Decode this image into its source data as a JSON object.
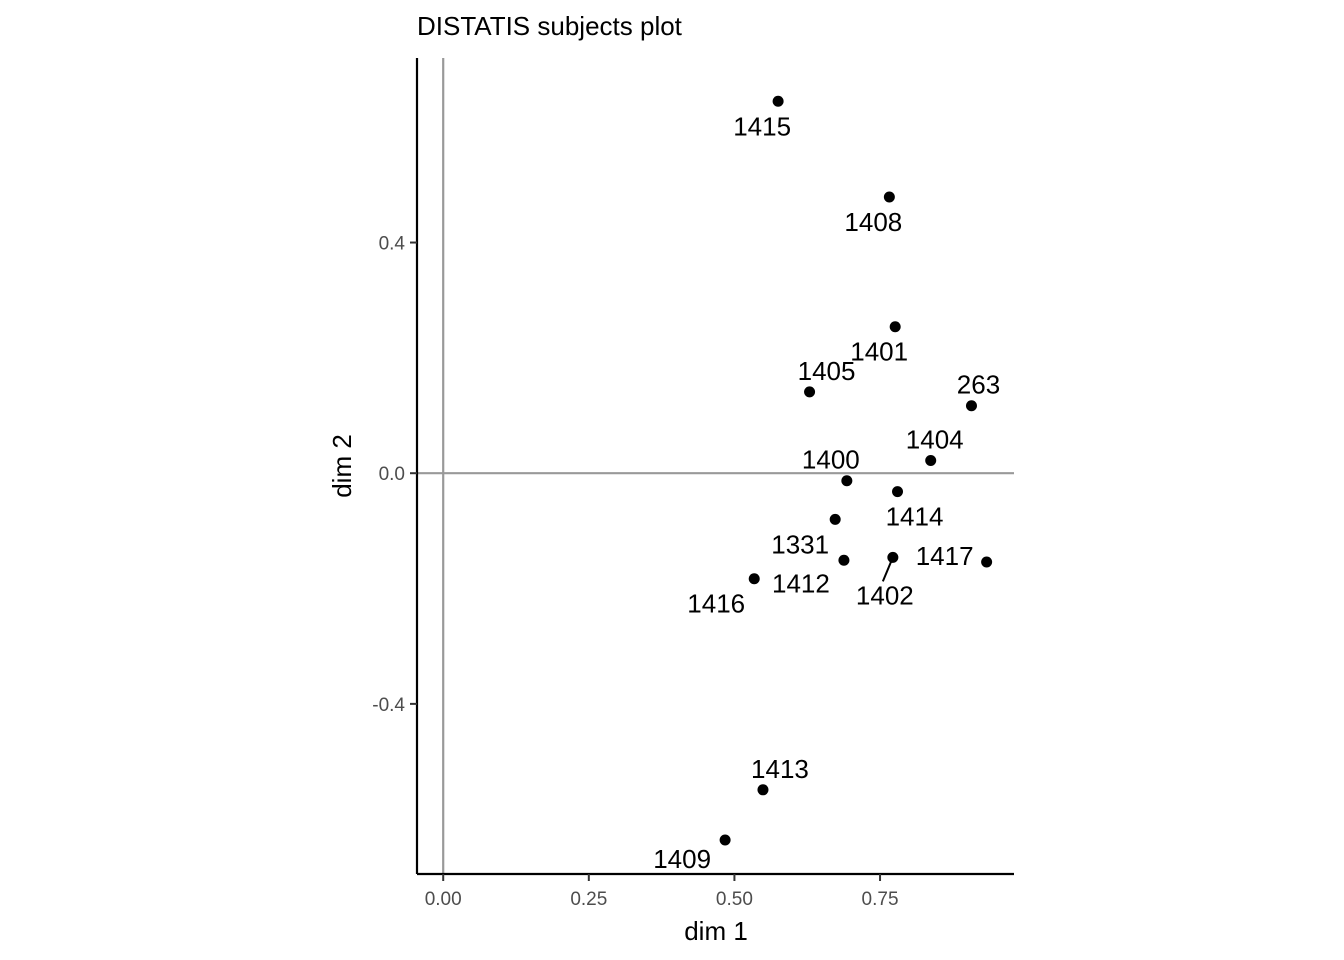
{
  "chart_data": {
    "type": "scatter",
    "title": "DISTATIS subjects plot",
    "xlabel": "dim 1",
    "ylabel": "dim 2",
    "xlim": [
      -0.045,
      0.98
    ],
    "ylim": [
      -0.695,
      0.72
    ],
    "xticks": [
      0.0,
      0.25,
      0.5,
      0.75
    ],
    "xtick_labels": [
      "0.00",
      "0.25",
      "0.50",
      "0.75"
    ],
    "yticks": [
      -0.4,
      0.0,
      0.4
    ],
    "ytick_labels": [
      "-0.4",
      "0.0",
      "0.4"
    ],
    "reference_lines": {
      "x": 0,
      "y": 0
    },
    "grid": false,
    "points": [
      {
        "label": "1415",
        "x": 0.575,
        "y": 0.645
      },
      {
        "label": "1408",
        "x": 0.766,
        "y": 0.479
      },
      {
        "label": "1401",
        "x": 0.776,
        "y": 0.254
      },
      {
        "label": "1405",
        "x": 0.629,
        "y": 0.141
      },
      {
        "label": "263",
        "x": 0.907,
        "y": 0.117
      },
      {
        "label": "1404",
        "x": 0.837,
        "y": 0.022
      },
      {
        "label": "1400",
        "x": 0.693,
        "y": -0.013
      },
      {
        "label": "1414",
        "x": 0.78,
        "y": -0.032
      },
      {
        "label": "1331",
        "x": 0.673,
        "y": -0.08
      },
      {
        "label": "1412",
        "x": 0.688,
        "y": -0.151
      },
      {
        "label": "1402",
        "x": 0.772,
        "y": -0.146
      },
      {
        "label": "1417",
        "x": 0.933,
        "y": -0.154
      },
      {
        "label": "1416",
        "x": 0.534,
        "y": -0.183
      },
      {
        "label": "1413",
        "x": 0.549,
        "y": -0.549
      },
      {
        "label": "1409",
        "x": 0.484,
        "y": -0.636
      }
    ]
  }
}
